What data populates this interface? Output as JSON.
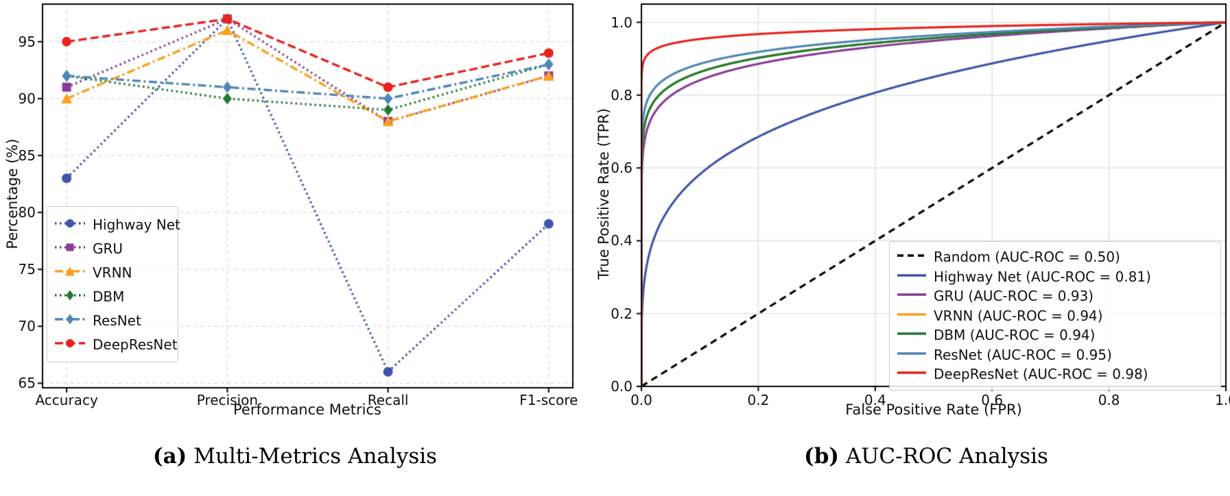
{
  "captions": {
    "a": {
      "tag": "(a)",
      "text": "Multi-Metrics Analysis"
    },
    "b": {
      "tag": "(b)",
      "text": "AUC-ROC Analysis"
    }
  },
  "chart_data": [
    {
      "id": "multi-metrics",
      "type": "line",
      "title": "Multi-Metrics Analysis",
      "xlabel": "Performance Metrics",
      "ylabel": "Percentage (%)",
      "categories": [
        "Accuracy",
        "Precision",
        "Recall",
        "F1-score"
      ],
      "yticks": [
        65,
        70,
        75,
        80,
        85,
        90,
        95
      ],
      "ylim": [
        64.6,
        98.3
      ],
      "grid": {
        "style": "dashed",
        "color": "#d8d8d8"
      },
      "legend_position": "lower-left",
      "series": [
        {
          "name": "Highway Net",
          "color": "#3E55A8",
          "linestyle": "dotted",
          "marker": "circle",
          "values": [
            83,
            97,
            66,
            79
          ]
        },
        {
          "name": "GRU",
          "color": "#8A3B98",
          "linestyle": "dotted",
          "marker": "square",
          "values": [
            91,
            97,
            88,
            92
          ]
        },
        {
          "name": "VRNN",
          "color": "#FBA01E",
          "linestyle": "dashdot",
          "marker": "triangle",
          "values": [
            90,
            96,
            88,
            92
          ]
        },
        {
          "name": "DBM",
          "color": "#1E7B34",
          "linestyle": "dotted",
          "marker": "diamond",
          "values": [
            92,
            90,
            89,
            93
          ]
        },
        {
          "name": "ResNet",
          "color": "#4E86B9",
          "linestyle": "dashdot",
          "marker": "diamond",
          "values": [
            92,
            91,
            90,
            93
          ]
        },
        {
          "name": "DeepResNet",
          "color": "#E8231F",
          "linestyle": "dashed",
          "marker": "circle",
          "values": [
            95,
            97,
            91,
            94
          ]
        }
      ]
    },
    {
      "id": "auc-roc",
      "type": "line",
      "title": "AUC-ROC Analysis",
      "xlabel": "False Positive Rate (FPR)",
      "ylabel": "True Positive Rate (TPR)",
      "xticks": [
        "0.0",
        "0.2",
        "0.4",
        "0.6",
        "0.8",
        "1.0"
      ],
      "yticks": [
        "0.0",
        "0.2",
        "0.4",
        "0.6",
        "0.8",
        "1.0"
      ],
      "xlim": [
        0,
        1
      ],
      "ylim": [
        0,
        1.05
      ],
      "grid": {
        "style": "solid",
        "color": "#dcdcdc"
      },
      "legend_position": "lower-right",
      "series": [
        {
          "name": "Random",
          "label": "Random (AUC-ROC = 0.50)",
          "auc_roc": 0.5,
          "color": "#000000",
          "linestyle": "dashed",
          "curve": "diagonal"
        },
        {
          "name": "Highway Net",
          "label": "Highway Net (AUC-ROC = 0.81)",
          "auc_roc": 0.81,
          "color": "#3E55A8",
          "linestyle": "solid",
          "curve": "power"
        },
        {
          "name": "GRU",
          "label": "GRU (AUC-ROC = 0.93)",
          "auc_roc": 0.93,
          "color": "#8A3B98",
          "linestyle": "solid",
          "curve": "power"
        },
        {
          "name": "VRNN",
          "label": "VRNN (AUC-ROC = 0.94)",
          "auc_roc": 0.94,
          "color": "#FBA01E",
          "linestyle": "solid",
          "curve": "power"
        },
        {
          "name": "DBM",
          "label": "DBM (AUC-ROC = 0.94)",
          "auc_roc": 0.94,
          "color": "#1E7B34",
          "linestyle": "solid",
          "curve": "power"
        },
        {
          "name": "ResNet",
          "label": "ResNet (AUC-ROC = 0.95)",
          "auc_roc": 0.95,
          "color": "#4E86B9",
          "linestyle": "solid",
          "curve": "power"
        },
        {
          "name": "DeepResNet",
          "label": "DeepResNet (AUC-ROC = 0.98)",
          "auc_roc": 0.98,
          "color": "#E8231F",
          "linestyle": "solid",
          "curve": "power"
        }
      ]
    }
  ]
}
